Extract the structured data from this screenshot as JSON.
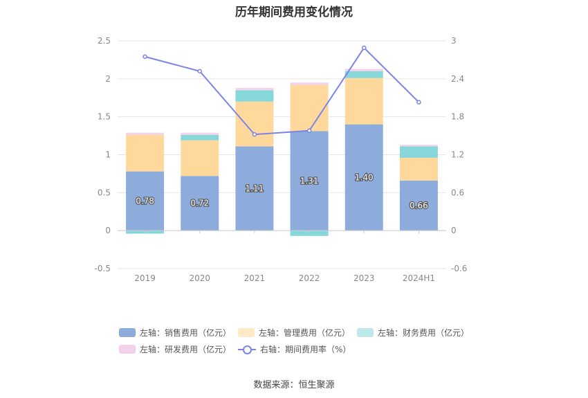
{
  "title": "历年期间费用变化情况",
  "source": "数据来源：恒生聚源",
  "chart_data": {
    "type": "bar",
    "stacked": true,
    "categories": [
      "2019",
      "2020",
      "2021",
      "2022",
      "2023",
      "2024H1"
    ],
    "y_left": {
      "ticks": [
        "-0.5",
        "0",
        "0.5",
        "1",
        "1.5",
        "2",
        "2.5"
      ],
      "range": [
        -0.5,
        2.5
      ]
    },
    "y_right": {
      "ticks": [
        "-0.6",
        "0",
        "0.6",
        "1.2",
        "1.8",
        "2.4",
        "3"
      ],
      "range": [
        -0.6,
        3
      ]
    },
    "series": [
      {
        "name": "左轴：销售费用（亿元）",
        "axis": "left",
        "color": "#8eacdb",
        "values": [
          0.78,
          0.72,
          1.11,
          1.31,
          1.4,
          0.66
        ],
        "labels": [
          "0.78",
          "0.72",
          "1.11",
          "1.31",
          "1.40",
          "0.66"
        ]
      },
      {
        "name": "左轴：管理费用（亿元）",
        "axis": "left",
        "color": "#ffd99c",
        "values": [
          0.48,
          0.47,
          0.59,
          0.61,
          0.61,
          0.3
        ]
      },
      {
        "name": "左轴：财务费用（亿元）",
        "axis": "left",
        "color": "#86d7d9",
        "values": [
          -0.04,
          0.07,
          0.15,
          -0.07,
          0.09,
          0.15
        ]
      },
      {
        "name": "左轴：研发费用（亿元）",
        "axis": "left",
        "color": "#f3d3ec",
        "values": [
          0.03,
          0.03,
          0.03,
          0.03,
          0.03,
          0.02
        ]
      },
      {
        "name": "右轴：期间费用率（%）",
        "axis": "right",
        "type": "line",
        "color": "#7b83e8",
        "values": [
          2.75,
          2.52,
          1.52,
          1.58,
          2.89,
          2.03
        ]
      }
    ],
    "legend_position": "bottom",
    "grid": true
  }
}
